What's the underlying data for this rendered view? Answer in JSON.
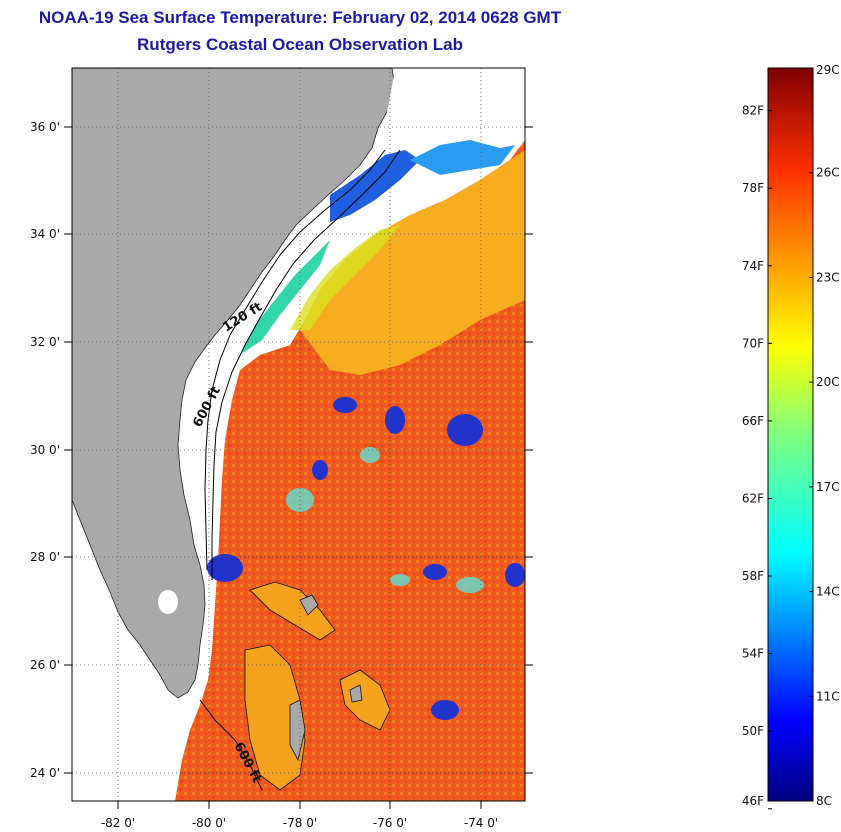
{
  "title": {
    "line1": "NOAA-19 Sea Surface Temperature:  February 02, 2014 0628 GMT",
    "line2": "Rutgers Coastal Ocean Observation Lab"
  },
  "map": {
    "lon_labels": [
      "-82 0'",
      "-80 0'",
      "-78 0'",
      "-76 0'",
      "-74 0'"
    ],
    "lat_labels": [
      "36 0'",
      "34 0'",
      "32 0'",
      "30 0'",
      "28 0'",
      "26 0'",
      "24 0'"
    ],
    "lon_values": [
      -82,
      -80,
      -78,
      -76,
      -74
    ],
    "lat_values": [
      36,
      34,
      32,
      30,
      28,
      26,
      24
    ],
    "lon_range": [
      -83,
      -73
    ],
    "lat_range": [
      23,
      37
    ],
    "contour_labels": [
      "120 ft",
      "600 ft",
      "600 ft"
    ],
    "colors": {
      "land": "#a9a9a9",
      "cloud_mask": "#ffffff",
      "warm_ocean": "#f2581c",
      "cool_shelf": "#1f5fe0",
      "contour": "#000000"
    }
  },
  "colorbar": {
    "f_labels": [
      "82F",
      "78F",
      "74F",
      "70F",
      "66F",
      "62F",
      "58F",
      "54F",
      "50F",
      "46F"
    ],
    "c_labels": [
      "29C",
      "26C",
      "23C",
      "20C",
      "17C",
      "14C",
      "11C",
      "8C"
    ],
    "f_values": [
      82,
      78,
      74,
      70,
      66,
      62,
      58,
      54,
      50,
      46
    ],
    "c_values": [
      29,
      26,
      23,
      20,
      17,
      14,
      11,
      8
    ],
    "range_c": [
      8,
      29
    ]
  }
}
